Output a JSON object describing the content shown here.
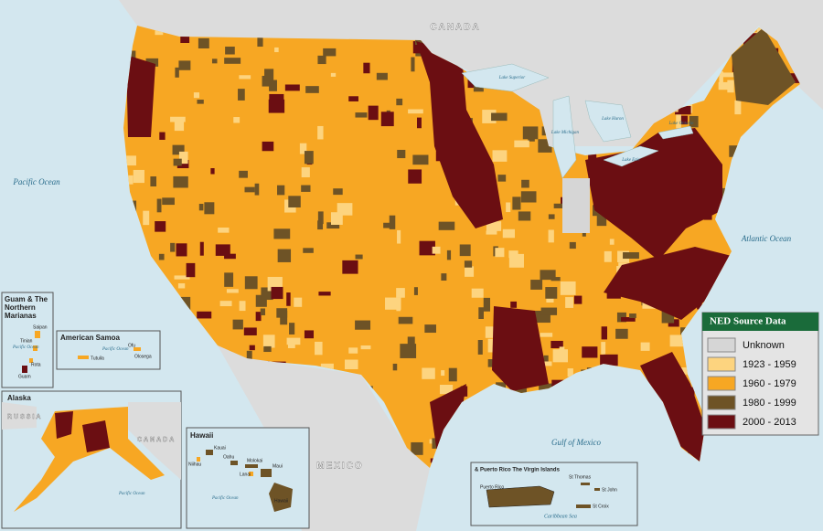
{
  "labels": {
    "canada": "CANADA",
    "mexico": "MEXICO",
    "pacific_ocean": "Pacific Ocean",
    "atlantic_ocean": "Atlantic Ocean",
    "gulf_of_mexico": "Gulf of Mexico",
    "lake_superior": "Lake Superior",
    "lake_michigan": "Lake Michigan",
    "lake_huron": "Lake Huron",
    "lake_erie": "Lake Erie",
    "lake_ontario": "Lake Ontario"
  },
  "insets": {
    "guam": {
      "title": "Guam & The Northern Marianas",
      "places": [
        "Saipan",
        "Tinian",
        "Rota",
        "Guam"
      ],
      "ocean": "Pacific Ocean"
    },
    "samoa": {
      "title": "American Samoa",
      "places": [
        "Tutuila",
        "Ofu",
        "Olosega"
      ],
      "ocean": "Pacific Ocean"
    },
    "alaska": {
      "title": "Alaska",
      "places": [
        "RUSSIA",
        "CANADA"
      ],
      "ocean": "Pacific Ocean"
    },
    "hawaii": {
      "title": "Hawaii",
      "places": [
        "Kauai",
        "Niihau",
        "Oahu",
        "Molokai",
        "Lanai",
        "Maui",
        "Hawaii"
      ],
      "ocean": "Pacific Ocean"
    },
    "puerto_rico": {
      "title": "& Puerto Rico The Virgin Islands",
      "places": [
        "Puerto Rico",
        "St Thomas",
        "St John",
        "St Croix"
      ],
      "ocean": "Caribbean Sea"
    }
  },
  "legend": {
    "title": "NED Source Data",
    "items": [
      {
        "label": "Unknown",
        "color": "#d6d6d6"
      },
      {
        "label": "1923 - 1959",
        "color": "#fdd47f"
      },
      {
        "label": "1960 - 1979",
        "color": "#f7a723"
      },
      {
        "label": "1980 - 1999",
        "color": "#6e5326"
      },
      {
        "label": "2000 - 2013",
        "color": "#6b0e12"
      }
    ]
  }
}
